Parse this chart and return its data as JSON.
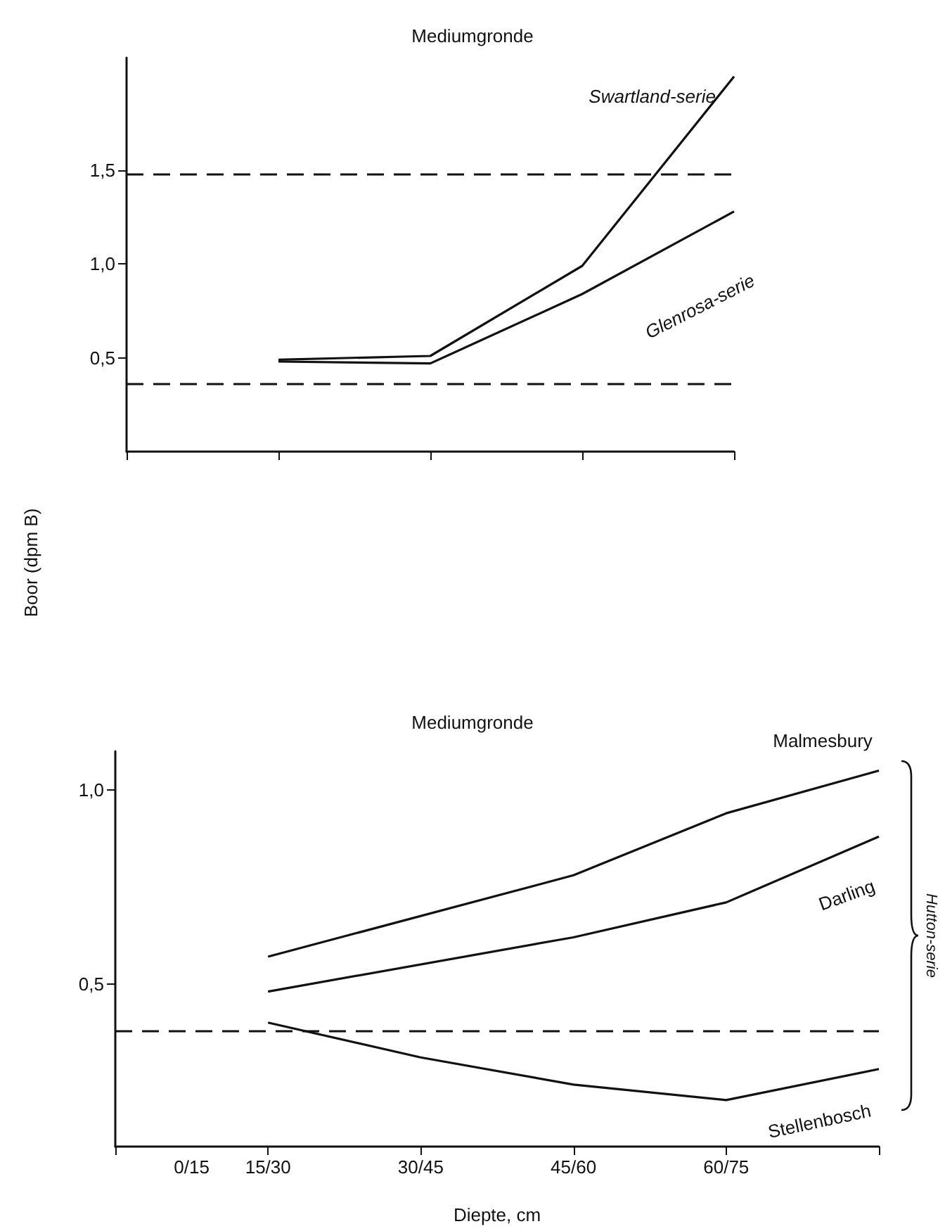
{
  "chart_data": [
    {
      "type": "line",
      "title": "Mediumgronde",
      "categories": [
        null,
        null,
        null,
        null,
        null
      ],
      "ylim": [
        0,
        2.1
      ],
      "yticks": [
        {
          "value": 0.5,
          "label": "0,5"
        },
        {
          "value": 1.0,
          "label": "1,0"
        },
        {
          "value": 1.5,
          "label": "1,5"
        }
      ],
      "grid": false,
      "legend": false,
      "marker": "none",
      "line_style": "solid",
      "series": [
        {
          "name": "Swartland-serie",
          "color": "#111111",
          "values": [
            null,
            0.49,
            0.51,
            0.99,
            2.0
          ]
        },
        {
          "name": "Glenrosa-serie",
          "color": "#111111",
          "values": [
            null,
            0.48,
            0.47,
            0.84,
            1.28
          ]
        }
      ],
      "ref_lines": [
        {
          "axis": "y",
          "value": 1.48,
          "line_style": "dashed",
          "color": "#111111"
        },
        {
          "axis": "y",
          "value": 0.36,
          "line_style": "dashed",
          "color": "#111111"
        }
      ]
    },
    {
      "type": "line",
      "title": "Mediumgronde",
      "xlabel": "Diepte, cm",
      "ylabel": "Boor (dpm B)",
      "categories": [
        null,
        "0/15",
        "15/30",
        null,
        "30/45",
        null,
        "45/60",
        null,
        "60/75",
        null,
        null
      ],
      "ylim": [
        0.08,
        1.1
      ],
      "yticks": [
        {
          "value": 0.5,
          "label": "0,5"
        },
        {
          "value": 1.0,
          "label": "1,0"
        }
      ],
      "grid": false,
      "legend": false,
      "marker": "none",
      "line_style": "solid",
      "series": [
        {
          "name": "Malmesbury",
          "color": "#111111",
          "values": [
            null,
            null,
            0.57,
            null,
            null,
            null,
            0.78,
            null,
            0.94,
            null,
            1.05
          ]
        },
        {
          "name": "Darling",
          "color": "#111111",
          "values": [
            null,
            null,
            0.48,
            null,
            null,
            null,
            0.62,
            null,
            0.71,
            null,
            0.88
          ]
        },
        {
          "name": "Stellenbosch",
          "color": "#111111",
          "values": [
            null,
            null,
            0.4,
            null,
            0.31,
            null,
            0.24,
            null,
            0.2,
            null,
            0.28
          ]
        }
      ],
      "ref_lines": [
        {
          "axis": "y",
          "value": 0.38,
          "line_style": "dashed",
          "color": "#111111"
        }
      ],
      "annotations": [
        "Hutton-serie"
      ]
    }
  ]
}
